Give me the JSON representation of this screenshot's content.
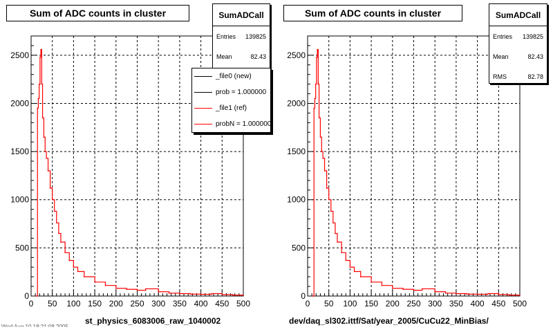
{
  "chart_data": [
    {
      "type": "line",
      "title": "Sum of ADC counts in cluster",
      "xlabel": "st_physics_6083006_raw_1040002",
      "ylabel": "",
      "xlim": [
        0,
        500
      ],
      "ylim": [
        0,
        2700
      ],
      "x_ticks": [
        "0",
        "50",
        "100",
        "150",
        "200",
        "250",
        "300",
        "350",
        "400",
        "450",
        "500"
      ],
      "y_ticks": [
        "0",
        "500",
        "1000",
        "1500",
        "2000",
        "2500"
      ],
      "grid": true,
      "stats": {
        "name": "SumADCall",
        "entries_label": "Entries",
        "entries": "139825",
        "mean_label": "Mean",
        "mean": "82.43"
      },
      "legend": {
        "placement": "top-right",
        "entries": [
          {
            "label": "_file0 (new)",
            "color": "#000000"
          },
          {
            "label": "prob = 1.000000",
            "color": "#000000"
          },
          {
            "label": "_file1 (ref)",
            "color": "#ff0000"
          },
          {
            "label": "probN = 1.000000",
            "color": "#ff0000"
          }
        ]
      },
      "series": [
        {
          "name": "_file1 (ref)",
          "color": "#ff0000",
          "x": [
            12,
            15,
            17,
            19,
            21,
            23,
            25,
            27,
            30,
            33,
            36,
            40,
            45,
            50,
            55,
            60,
            65,
            70,
            80,
            90,
            100,
            110,
            125,
            150,
            175,
            200,
            225,
            250,
            270,
            300,
            325,
            350,
            375,
            400,
            425,
            450,
            475,
            500
          ],
          "y": [
            0,
            1950,
            2050,
            2200,
            2480,
            2560,
            2200,
            1850,
            1650,
            1500,
            1430,
            1300,
            1120,
            1000,
            880,
            760,
            650,
            560,
            450,
            370,
            300,
            255,
            200,
            145,
            110,
            80,
            70,
            60,
            75,
            45,
            30,
            25,
            20,
            18,
            25,
            15,
            10,
            8
          ]
        }
      ]
    },
    {
      "type": "line",
      "title": "Sum of ADC counts in cluster",
      "xlabel": "dev/daq_sl302.ittf/Sat/year_2005/CuCu22_MinBias/",
      "ylabel": "",
      "xlim": [
        0,
        500
      ],
      "ylim": [
        0,
        2700
      ],
      "x_ticks": [
        "0",
        "50",
        "100",
        "150",
        "200",
        "250",
        "300",
        "350",
        "400",
        "450",
        "500"
      ],
      "y_ticks": [
        "0",
        "500",
        "1000",
        "1500",
        "2000",
        "2500"
      ],
      "grid": true,
      "stats": {
        "name": "SumADCall",
        "entries_label": "Entries",
        "entries": "139825",
        "mean_label": "Mean",
        "mean": "82.43",
        "rms_label": "RMS",
        "rms": "82.78"
      },
      "series": [
        {
          "color": "#ff0000",
          "x": [
            12,
            15,
            17,
            19,
            21,
            23,
            25,
            27,
            30,
            33,
            36,
            40,
            45,
            50,
            55,
            60,
            65,
            70,
            80,
            90,
            100,
            110,
            125,
            150,
            175,
            200,
            225,
            250,
            270,
            300,
            325,
            350,
            375,
            400,
            425,
            450,
            475,
            500
          ],
          "y": [
            0,
            1950,
            2050,
            2200,
            2480,
            2560,
            2200,
            1850,
            1650,
            1500,
            1430,
            1300,
            1120,
            1000,
            880,
            760,
            650,
            560,
            450,
            370,
            300,
            255,
            200,
            145,
            110,
            80,
            70,
            60,
            75,
            45,
            30,
            25,
            20,
            18,
            25,
            15,
            10,
            8
          ]
        }
      ]
    }
  ],
  "footer": "Wed Aug 10 18:21:08 2005",
  "colors": {
    "frame": "#000000",
    "grid": "#000000",
    "series": "#ff0000"
  }
}
